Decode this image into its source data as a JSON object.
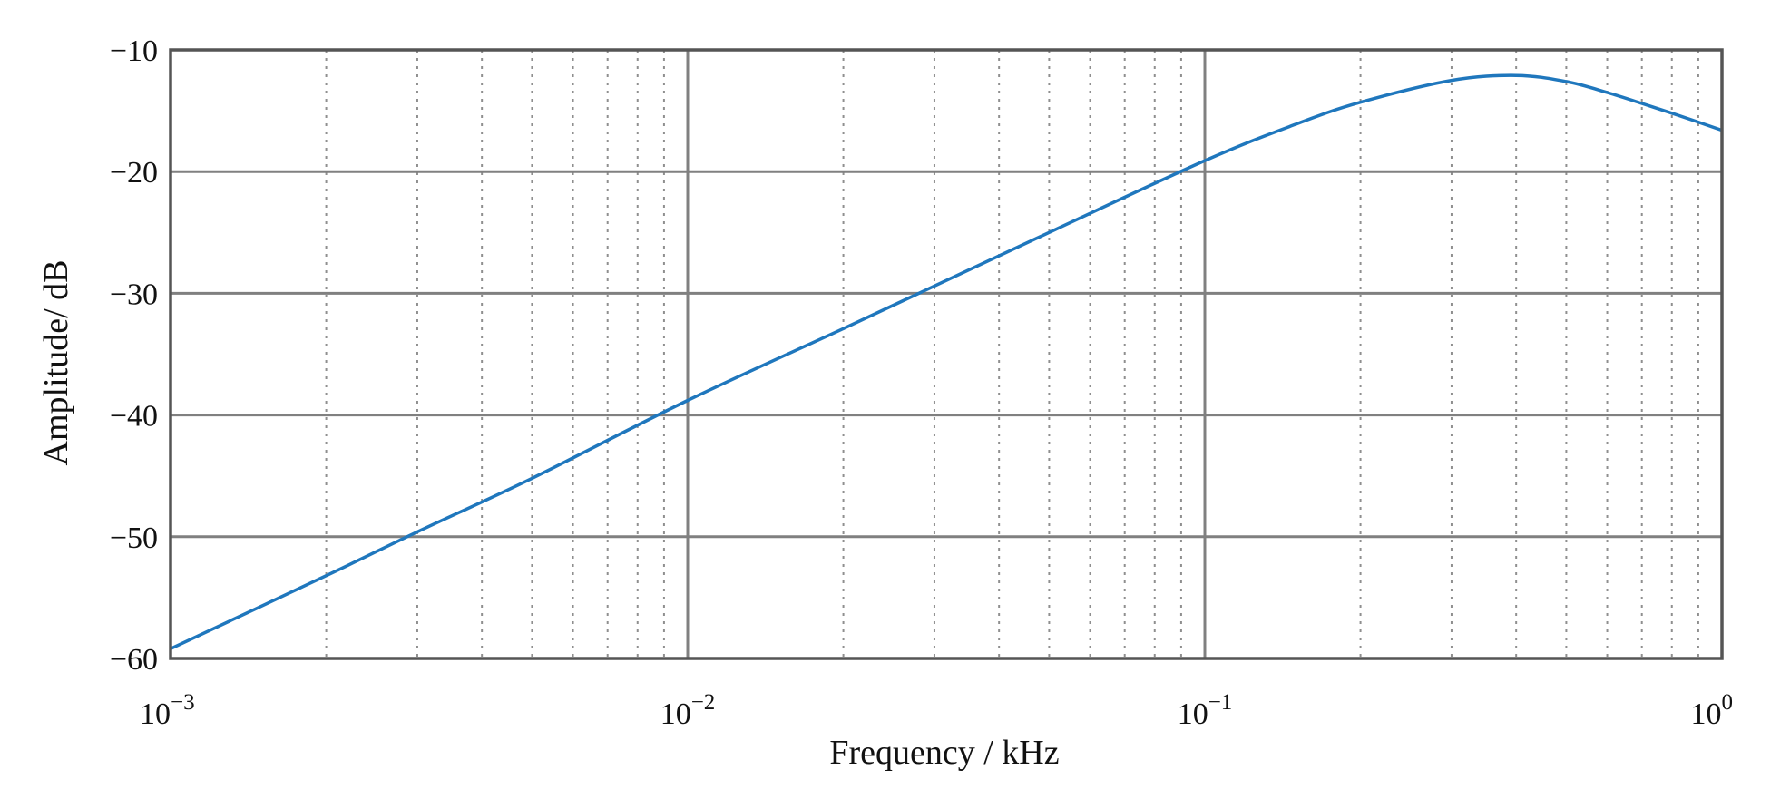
{
  "chart_data": {
    "type": "line",
    "title": "",
    "xlabel": "Frequency / kHz",
    "ylabel": "Amplitude/ dB",
    "xscale": "log",
    "xlim": [
      0.001,
      1
    ],
    "ylim": [
      -60,
      -10
    ],
    "grid": true,
    "legend": "none",
    "x_ticks": [
      {
        "value": 0.001,
        "base": "10",
        "exp": "−3"
      },
      {
        "value": 0.01,
        "base": "10",
        "exp": "−2"
      },
      {
        "value": 0.1,
        "base": "10",
        "exp": "−1"
      },
      {
        "value": 1,
        "base": "10",
        "exp": "0"
      }
    ],
    "y_ticks": [
      {
        "value": -10,
        "label": "−10"
      },
      {
        "value": -20,
        "label": "−20"
      },
      {
        "value": -30,
        "label": "−30"
      },
      {
        "value": -40,
        "label": "−40"
      },
      {
        "value": -50,
        "label": "−50"
      },
      {
        "value": -60,
        "label": "−60"
      }
    ],
    "series": [
      {
        "color": "#1f77bd",
        "x": [
          0.001,
          0.002,
          0.003,
          0.005,
          0.01,
          0.02,
          0.03,
          0.05,
          0.1,
          0.15,
          0.2,
          0.3,
          0.4,
          0.5,
          0.6,
          0.7,
          0.8,
          1.0
        ],
        "y": [
          -59.2,
          -53.2,
          -49.6,
          -45.2,
          -38.8,
          -32.9,
          -29.4,
          -25.0,
          -19.1,
          -16.1,
          -14.3,
          -12.5,
          -12.1,
          -12.6,
          -13.5,
          -14.4,
          -15.2,
          -16.6
        ]
      }
    ]
  }
}
